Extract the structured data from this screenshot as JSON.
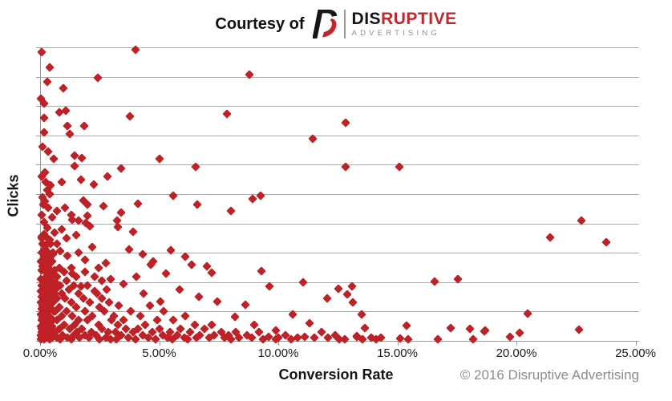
{
  "header": {
    "courtesy_text": "Courtesy of",
    "logo": {
      "icon": "disruptive-d-icon",
      "word_primary": "DIS",
      "word_secondary": "RUPTIVE",
      "subtext": "ADVERTISING"
    }
  },
  "footer": {
    "copyright": "© 2016 Disruptive Advertising"
  },
  "colors": {
    "marker": "#BE2126",
    "logo_red": "#C0272D",
    "logo_black": "#161616",
    "grid": "#ABABAB",
    "axis": "#9A9A9A",
    "tick_text": "#1C1C1C",
    "muted_text": "#8C8C8C"
  },
  "chart_data": {
    "type": "scatter",
    "title": "",
    "xlabel": "Conversion Rate",
    "ylabel": "Clicks",
    "x_tick_labels": [
      "0.00%",
      "5.00%",
      "10.00%",
      "15.00%",
      "20.00%",
      "25.00%"
    ],
    "x_tick_values": [
      0,
      5,
      10,
      15,
      20,
      25
    ],
    "y_tick_labels": [],
    "xlim": [
      0,
      25.4
    ],
    "ylim": [
      0,
      10
    ],
    "y_units": "clicks, relative scale (no numeric labels shown)",
    "y_gridline_count": 10,
    "grid": "horizontal gridlines only",
    "legend": "none",
    "marker": "diamond",
    "points": [
      [
        0.07,
        9.84
      ],
      [
        4.02,
        9.92
      ],
      [
        0.41,
        9.32
      ],
      [
        0.3,
        8.83
      ],
      [
        2.43,
        8.96
      ],
      [
        0.98,
        8.61
      ],
      [
        8.78,
        9.07
      ],
      [
        7.84,
        7.73
      ],
      [
        11.46,
        6.9
      ],
      [
        12.83,
        7.43
      ],
      [
        12.83,
        5.92
      ],
      [
        0.02,
        8.25
      ],
      [
        0.17,
        8.1
      ],
      [
        0.81,
        7.79
      ],
      [
        1.08,
        7.84
      ],
      [
        0.17,
        7.6
      ],
      [
        1.15,
        7.32
      ],
      [
        1.86,
        7.32
      ],
      [
        3.78,
        7.65
      ],
      [
        0.17,
        7.1
      ],
      [
        1.25,
        7.05
      ],
      [
        15.07,
        5.93
      ],
      [
        5.0,
        6.2
      ],
      [
        6.53,
        5.92
      ],
      [
        0.57,
        6.21
      ],
      [
        1.45,
        6.3
      ],
      [
        1.76,
        6.23
      ],
      [
        1.45,
        5.97
      ],
      [
        2.82,
        5.59
      ],
      [
        3.39,
        5.87
      ],
      [
        0.91,
        5.42
      ],
      [
        0.24,
        5.42
      ],
      [
        0.29,
        5.15
      ],
      [
        0.41,
        5.01
      ],
      [
        0.12,
        4.64
      ],
      [
        0.69,
        4.42
      ],
      [
        1.81,
        4.78
      ],
      [
        1.98,
        4.64
      ],
      [
        2.66,
        4.6
      ],
      [
        3.39,
        4.37
      ],
      [
        4.12,
        4.66
      ],
      [
        5.59,
        4.94
      ],
      [
        6.6,
        4.64
      ],
      [
        8.01,
        4.42
      ],
      [
        8.91,
        4.83
      ],
      [
        9.25,
        4.96
      ],
      [
        1.36,
        4.14
      ],
      [
        1.93,
        4.01
      ],
      [
        2.09,
        3.92
      ],
      [
        3.22,
        4.1
      ],
      [
        3.28,
        3.87
      ],
      [
        3.9,
        3.73
      ],
      [
        0.18,
        3.64
      ],
      [
        22.74,
        4.1
      ],
      [
        21.4,
        3.53
      ],
      [
        23.77,
        3.35
      ],
      [
        16.58,
        2.03
      ],
      [
        17.54,
        2.1
      ],
      [
        13.1,
        1.85
      ],
      [
        13.13,
        1.32
      ],
      [
        20.46,
        0.93
      ],
      [
        18.7,
        0.36
      ],
      [
        19.74,
        0.14
      ],
      [
        20.14,
        0.27
      ],
      [
        22.61,
        0.39
      ],
      [
        13.65,
        0.44
      ],
      [
        13.31,
        0.16
      ],
      [
        15.39,
        0.53
      ],
      [
        15.11,
        0.07
      ],
      [
        15.45,
        0.05
      ],
      [
        16.71,
        0.05
      ],
      [
        17.25,
        0.44
      ],
      [
        18.06,
        0.41
      ],
      [
        18.18,
        0.06
      ],
      [
        18.66,
        0.34
      ],
      [
        3.72,
        3.11
      ],
      [
        6.08,
        2.87
      ],
      [
        2.77,
        2.65
      ],
      [
        4.63,
        2.6
      ],
      [
        9.3,
        2.37
      ],
      [
        9.64,
        1.87
      ],
      [
        11.05,
        2.0
      ],
      [
        12.06,
        1.46
      ],
      [
        12.51,
        1.78
      ],
      [
        12.9,
        1.59
      ],
      [
        8.63,
        1.23
      ],
      [
        8.18,
        0.82
      ],
      [
        7.22,
        2.32
      ],
      [
        10.6,
        0.9
      ],
      [
        11.3,
        0.6
      ],
      [
        9.0,
        0.55
      ],
      [
        9.9,
        0.35
      ],
      [
        13.5,
        0.9
      ],
      [
        1.6,
        3.0
      ],
      [
        2.2,
        3.2
      ],
      [
        1.9,
        2.75
      ],
      [
        2.45,
        2.5
      ],
      [
        5.3,
        2.3
      ],
      [
        4.05,
        2.2
      ],
      [
        7.0,
        2.55
      ],
      [
        6.35,
        2.6
      ],
      [
        1.35,
        2.3
      ],
      [
        2.95,
        2.1
      ],
      [
        3.5,
        1.95
      ],
      [
        5.85,
        1.75
      ],
      [
        1.7,
        1.85
      ],
      [
        2.3,
        1.7
      ],
      [
        4.35,
        1.6
      ],
      [
        6.65,
        1.5
      ],
      [
        5.05,
        1.35
      ],
      [
        7.45,
        1.35
      ],
      [
        2.6,
        1.45
      ],
      [
        4.3,
        2.95
      ],
      [
        5.5,
        3.1
      ],
      [
        4.75,
        2.7
      ],
      [
        0.1,
        6.6
      ],
      [
        0.35,
        6.45
      ],
      [
        0.2,
        5.75
      ],
      [
        0.05,
        5.6
      ],
      [
        0.45,
        5.3
      ],
      [
        1.7,
        5.5
      ],
      [
        2.26,
        5.33
      ],
      [
        0.1,
        4.9
      ],
      [
        0.2,
        4.75
      ],
      [
        0.35,
        4.55
      ],
      [
        0.05,
        4.3
      ],
      [
        0.5,
        4.2
      ],
      [
        0.15,
        4.05
      ],
      [
        0.3,
        3.85
      ],
      [
        0.6,
        3.7
      ],
      [
        0.08,
        3.55
      ],
      [
        0.4,
        3.45
      ],
      [
        0.7,
        3.3
      ],
      [
        0.25,
        3.25
      ],
      [
        1.1,
        3.5
      ],
      [
        0.9,
        3.8
      ],
      [
        1.3,
        4.3
      ],
      [
        1.6,
        4.1
      ],
      [
        1.05,
        4.55
      ],
      [
        2.0,
        4.25
      ],
      [
        1.5,
        3.6
      ],
      [
        0.85,
        3.05
      ],
      [
        1.15,
        2.9
      ],
      [
        0.55,
        2.95
      ],
      [
        0.05,
        3.5
      ],
      [
        0.3,
        3.5
      ],
      [
        0.1,
        3.3
      ],
      [
        0.45,
        3.3
      ],
      [
        0.2,
        3.15
      ],
      [
        0.05,
        3.0
      ],
      [
        0.35,
        3.0
      ],
      [
        0.55,
        3.0
      ],
      [
        0.15,
        2.85
      ],
      [
        0.4,
        2.85
      ],
      [
        0.02,
        2.7
      ],
      [
        0.25,
        2.7
      ],
      [
        0.5,
        2.7
      ],
      [
        0.1,
        2.55
      ],
      [
        0.35,
        2.55
      ],
      [
        0.05,
        2.4
      ],
      [
        0.2,
        2.4
      ],
      [
        0.45,
        2.4
      ],
      [
        0.6,
        2.4
      ],
      [
        0.3,
        2.25
      ],
      [
        0.55,
        2.25
      ],
      [
        0.02,
        2.1
      ],
      [
        0.15,
        2.1
      ],
      [
        0.4,
        2.1
      ],
      [
        0.25,
        2.0
      ],
      [
        0.5,
        2.0
      ],
      [
        0.65,
        2.0
      ],
      [
        0.08,
        1.9
      ],
      [
        0.35,
        1.9
      ],
      [
        0.18,
        1.8
      ],
      [
        0.55,
        1.8
      ],
      [
        0.02,
        1.7
      ],
      [
        0.3,
        1.7
      ],
      [
        0.45,
        1.7
      ],
      [
        0.12,
        1.6
      ],
      [
        0.38,
        1.6
      ],
      [
        0.6,
        1.6
      ],
      [
        0.05,
        1.5
      ],
      [
        0.25,
        1.5
      ],
      [
        0.5,
        1.5
      ],
      [
        0.15,
        1.4
      ],
      [
        0.35,
        1.4
      ],
      [
        0.02,
        1.3
      ],
      [
        0.28,
        1.3
      ],
      [
        0.55,
        1.3
      ],
      [
        0.1,
        1.2
      ],
      [
        0.4,
        1.2
      ],
      [
        0.05,
        1.1
      ],
      [
        0.22,
        1.1
      ],
      [
        0.48,
        1.1
      ],
      [
        0.15,
        1.0
      ],
      [
        0.35,
        1.0
      ],
      [
        0.58,
        1.0
      ],
      [
        0.02,
        0.9
      ],
      [
        0.25,
        0.9
      ],
      [
        0.1,
        0.8
      ],
      [
        0.3,
        0.8
      ],
      [
        0.45,
        0.8
      ],
      [
        0.05,
        0.7
      ],
      [
        0.2,
        0.7
      ],
      [
        0.55,
        0.7
      ],
      [
        0.15,
        0.6
      ],
      [
        0.38,
        0.6
      ],
      [
        0.02,
        0.5
      ],
      [
        0.3,
        0.5
      ],
      [
        0.5,
        0.5
      ],
      [
        0.08,
        0.4
      ],
      [
        0.22,
        0.4
      ],
      [
        0.42,
        0.4
      ],
      [
        0.05,
        0.3
      ],
      [
        0.15,
        0.3
      ],
      [
        0.35,
        0.3
      ],
      [
        0.02,
        0.2
      ],
      [
        0.25,
        0.2
      ],
      [
        0.45,
        0.2
      ],
      [
        0.6,
        0.2
      ],
      [
        0.08,
        0.1
      ],
      [
        0.3,
        0.1
      ],
      [
        0.52,
        0.1
      ],
      [
        0.02,
        0.05
      ],
      [
        0.18,
        0.05
      ],
      [
        0.4,
        0.05
      ],
      [
        0.8,
        2.5
      ],
      [
        1.3,
        2.5
      ],
      [
        1.0,
        2.35
      ],
      [
        1.9,
        2.35
      ],
      [
        0.7,
        2.2
      ],
      [
        1.5,
        2.2
      ],
      [
        2.3,
        2.2
      ],
      [
        1.1,
        2.05
      ],
      [
        2.6,
        2.05
      ],
      [
        0.85,
        1.9
      ],
      [
        1.4,
        1.9
      ],
      [
        2.0,
        1.9
      ],
      [
        0.65,
        1.75
      ],
      [
        1.2,
        1.75
      ],
      [
        2.8,
        1.75
      ],
      [
        0.9,
        1.6
      ],
      [
        1.6,
        1.6
      ],
      [
        2.4,
        1.6
      ],
      [
        0.7,
        1.45
      ],
      [
        1.05,
        1.45
      ],
      [
        1.8,
        1.45
      ],
      [
        1.3,
        1.3
      ],
      [
        2.1,
        1.3
      ],
      [
        2.9,
        1.3
      ],
      [
        0.8,
        1.15
      ],
      [
        1.5,
        1.15
      ],
      [
        2.5,
        1.15
      ],
      [
        0.65,
        1.0
      ],
      [
        1.1,
        1.0
      ],
      [
        1.9,
        1.0
      ],
      [
        2.7,
        1.0
      ],
      [
        0.9,
        0.85
      ],
      [
        1.35,
        0.85
      ],
      [
        2.2,
        0.85
      ],
      [
        0.7,
        0.7
      ],
      [
        1.6,
        0.7
      ],
      [
        2.0,
        0.7
      ],
      [
        3.0,
        0.7
      ],
      [
        1.0,
        0.55
      ],
      [
        1.45,
        0.55
      ],
      [
        2.45,
        0.55
      ],
      [
        0.8,
        0.4
      ],
      [
        1.25,
        0.4
      ],
      [
        1.75,
        0.4
      ],
      [
        2.6,
        0.4
      ],
      [
        0.65,
        0.3
      ],
      [
        1.55,
        0.3
      ],
      [
        2.15,
        0.3
      ],
      [
        2.85,
        0.3
      ],
      [
        0.95,
        0.2
      ],
      [
        1.4,
        0.2
      ],
      [
        1.9,
        0.2
      ],
      [
        2.35,
        0.2
      ],
      [
        0.7,
        0.1
      ],
      [
        1.15,
        0.1
      ],
      [
        1.65,
        0.1
      ],
      [
        2.05,
        0.1
      ],
      [
        2.75,
        0.1
      ],
      [
        0.85,
        0.05
      ],
      [
        1.3,
        0.05
      ],
      [
        2.5,
        0.05
      ],
      [
        2.95,
        0.05
      ],
      [
        3.3,
        1.2
      ],
      [
        4.6,
        1.2
      ],
      [
        3.8,
        1.0
      ],
      [
        5.2,
        1.0
      ],
      [
        3.1,
        0.85
      ],
      [
        4.2,
        0.85
      ],
      [
        6.1,
        0.85
      ],
      [
        3.5,
        0.7
      ],
      [
        4.9,
        0.7
      ],
      [
        5.6,
        0.7
      ],
      [
        3.25,
        0.55
      ],
      [
        4.4,
        0.55
      ],
      [
        6.5,
        0.55
      ],
      [
        7.2,
        0.55
      ],
      [
        3.6,
        0.4
      ],
      [
        4.1,
        0.4
      ],
      [
        5.0,
        0.4
      ],
      [
        5.9,
        0.4
      ],
      [
        6.9,
        0.4
      ],
      [
        3.15,
        0.3
      ],
      [
        3.9,
        0.3
      ],
      [
        4.7,
        0.3
      ],
      [
        5.45,
        0.3
      ],
      [
        6.3,
        0.3
      ],
      [
        7.6,
        0.3
      ],
      [
        8.2,
        0.3
      ],
      [
        3.4,
        0.2
      ],
      [
        4.3,
        0.2
      ],
      [
        5.15,
        0.2
      ],
      [
        5.75,
        0.2
      ],
      [
        6.7,
        0.2
      ],
      [
        7.3,
        0.2
      ],
      [
        7.9,
        0.2
      ],
      [
        3.7,
        0.1
      ],
      [
        4.55,
        0.1
      ],
      [
        5.35,
        0.1
      ],
      [
        6.05,
        0.1
      ],
      [
        6.55,
        0.1
      ],
      [
        7.1,
        0.1
      ],
      [
        7.75,
        0.1
      ],
      [
        8.35,
        0.1
      ],
      [
        3.2,
        0.05
      ],
      [
        4.0,
        0.05
      ],
      [
        4.85,
        0.05
      ],
      [
        5.55,
        0.05
      ],
      [
        6.2,
        0.05
      ],
      [
        8.0,
        0.05
      ],
      [
        9.2,
        0.3
      ],
      [
        11.8,
        0.3
      ],
      [
        8.7,
        0.2
      ],
      [
        10.3,
        0.2
      ],
      [
        12.4,
        0.2
      ],
      [
        9.6,
        0.15
      ],
      [
        11.1,
        0.15
      ],
      [
        13.3,
        0.15
      ],
      [
        8.9,
        0.1
      ],
      [
        10.0,
        0.1
      ],
      [
        10.8,
        0.1
      ],
      [
        11.5,
        0.1
      ],
      [
        12.1,
        0.1
      ],
      [
        13.9,
        0.1
      ],
      [
        14.3,
        0.1
      ],
      [
        9.35,
        0.05
      ],
      [
        9.9,
        0.05
      ],
      [
        10.55,
        0.05
      ],
      [
        12.8,
        0.05
      ],
      [
        13.55,
        0.05
      ],
      [
        14.1,
        0.05
      ],
      [
        12.55,
        0.05
      ]
    ]
  }
}
